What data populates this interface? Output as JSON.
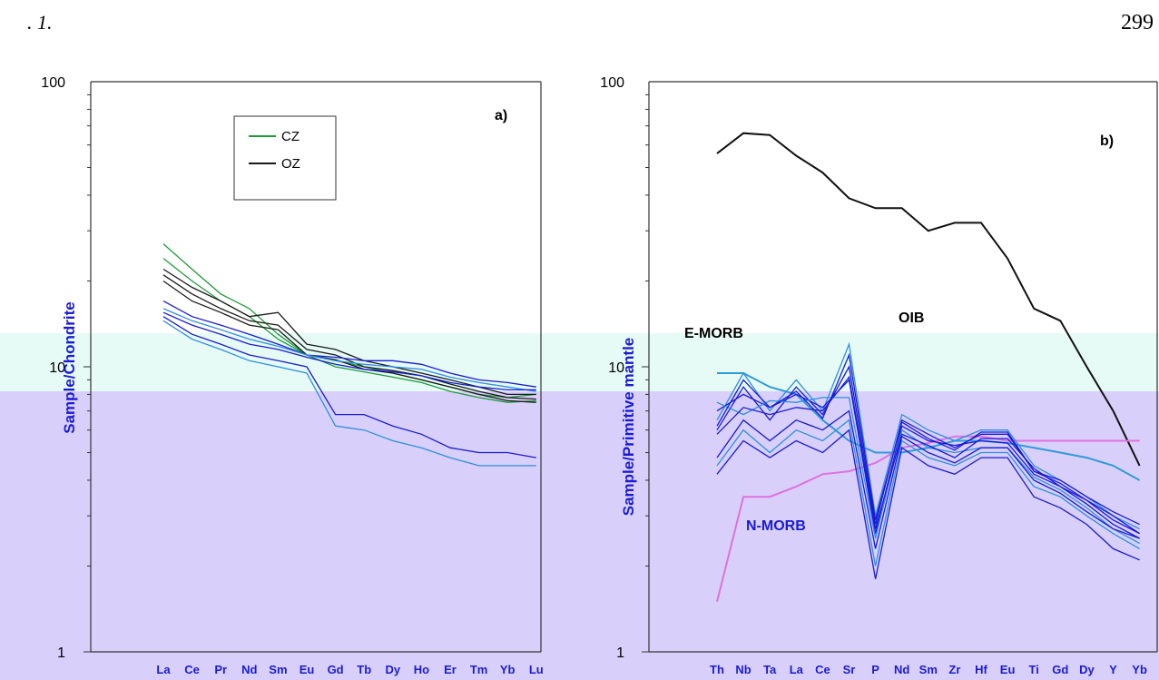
{
  "page": {
    "number": "299",
    "header_fragment": ". 1."
  },
  "colors": {
    "band_top": "#e6fbf5",
    "band_bottom": "#d8d0fa",
    "cz": "#1f9a3a",
    "oz": "#1a1a1a",
    "sample_blue": "#1a1ad8",
    "sample_light": "#2f8ee0",
    "nmorb": "#e070e0",
    "emorb": "#2f9ad8",
    "oib": "#111111"
  },
  "chart_data": [
    {
      "type": "line",
      "panel_label": "a)",
      "ylabel": "Sample/Chondrite",
      "yscale": "log",
      "ylim": [
        1,
        100
      ],
      "ytick_labels": [
        "1",
        "10",
        "100"
      ],
      "categories": [
        "La",
        "Ce",
        "Pr",
        "Nd",
        "Sm",
        "Eu",
        "Gd",
        "Tb",
        "Dy",
        "Ho",
        "Er",
        "Tm",
        "Yb",
        "Lu"
      ],
      "legend": [
        "CZ",
        "OZ"
      ],
      "legend_position": "top",
      "series": [
        {
          "name": "CZ",
          "values": [
            27,
            22,
            18,
            16,
            13,
            11,
            10.5,
            10,
            9.5,
            9,
            8.5,
            8,
            7.8,
            8
          ]
        },
        {
          "name": "CZ",
          "values": [
            24,
            20,
            17,
            15,
            12.5,
            11,
            10,
            9.6,
            9.2,
            8.8,
            8.2,
            7.8,
            7.5,
            7.6
          ]
        },
        {
          "name": "OZ",
          "values": [
            22,
            19,
            17,
            15,
            15.5,
            12,
            11.5,
            10.5,
            10,
            9.5,
            9,
            8.5,
            8,
            8
          ]
        },
        {
          "name": "OZ",
          "values": [
            21,
            18,
            16,
            14.5,
            14,
            11.5,
            11,
            10,
            9.7,
            9.3,
            8.7,
            8.2,
            7.8,
            7.7
          ]
        },
        {
          "name": "OZ",
          "values": [
            20,
            17,
            15.5,
            14,
            13.5,
            11,
            10.6,
            9.8,
            9.5,
            9,
            8.5,
            8,
            7.6,
            7.5
          ]
        },
        {
          "values": [
            17,
            15,
            14,
            13,
            12,
            11,
            10.8,
            10.5,
            10.5,
            10.2,
            9.5,
            9,
            8.8,
            8.5
          ]
        },
        {
          "values": [
            16,
            14.5,
            13.5,
            12.5,
            11.8,
            11,
            10.5,
            10.2,
            10,
            9.8,
            9.2,
            8.8,
            8.5,
            8.2
          ]
        },
        {
          "values": [
            15.5,
            14,
            13,
            12,
            11.5,
            10.8,
            10.2,
            9.8,
            9.6,
            9.3,
            8.8,
            8.5,
            8.3,
            8.3
          ]
        },
        {
          "values": [
            15,
            13,
            12,
            11,
            10.5,
            10,
            6.8,
            6.8,
            6.2,
            5.8,
            5.2,
            5,
            5,
            4.8
          ]
        },
        {
          "values": [
            14.5,
            12.5,
            11.5,
            10.5,
            10,
            9.5,
            6.2,
            6,
            5.5,
            5.2,
            4.8,
            4.5,
            4.5,
            4.5
          ]
        }
      ]
    },
    {
      "type": "line",
      "panel_label": "b)",
      "ylabel": "Sample/Primitive mantle",
      "yscale": "log",
      "ylim": [
        1,
        100
      ],
      "ytick_labels": [
        "1",
        "10",
        "100"
      ],
      "categories": [
        "Th",
        "Nb",
        "Ta",
        "La",
        "Ce",
        "Sr",
        "P",
        "Nd",
        "Sm",
        "Zr",
        "Hf",
        "Eu",
        "Ti",
        "Gd",
        "Dy",
        "Y",
        "Yb"
      ],
      "annotations": [
        "OIB",
        "N-MORB",
        "E-MORB"
      ],
      "series": [
        {
          "name": "OIB",
          "values": [
            56,
            66,
            65,
            55,
            48,
            39,
            36,
            36,
            30,
            32,
            32,
            24,
            16,
            14.5,
            10,
            7,
            4.5
          ]
        },
        {
          "name": "E-MORB",
          "values": [
            9.5,
            9.5,
            8.5,
            8,
            6.5,
            5.5,
            5,
            5,
            5.2,
            5.5,
            5.5,
            5.4,
            5.2,
            5,
            4.8,
            4.5,
            4
          ]
        },
        {
          "name": "N-MORB",
          "values": [
            1.5,
            3.5,
            3.5,
            3.8,
            4.2,
            4.3,
            4.6,
            5.2,
            5.4,
            5.7,
            5.7,
            5.5,
            5.5,
            5.5,
            5.5,
            5.5,
            5.5
          ]
        },
        {
          "values": [
            6.5,
            9.5,
            7,
            9,
            7,
            12,
            3,
            6.8,
            6,
            5.5,
            6,
            6,
            4.5,
            4,
            3.5,
            3,
            2.7
          ]
        },
        {
          "values": [
            6,
            8.5,
            6.5,
            8.5,
            6.8,
            10,
            2.8,
            6.5,
            5.8,
            5.2,
            5.8,
            5.8,
            4.3,
            3.9,
            3.4,
            2.9,
            2.6
          ]
        },
        {
          "values": [
            7,
            8,
            7.2,
            8,
            7.2,
            9,
            2.6,
            6.2,
            5.5,
            5.3,
            5.5,
            5.4,
            4.2,
            3.8,
            3.3,
            2.8,
            2.5
          ]
        },
        {
          "values": [
            7.5,
            6.8,
            7.6,
            7.5,
            7.8,
            7.8,
            2.5,
            6,
            5.2,
            5,
            5.2,
            5.2,
            4.1,
            3.7,
            3.2,
            2.7,
            2.4
          ]
        },
        {
          "values": [
            5.8,
            7.2,
            6.8,
            7.2,
            7,
            9.2,
            2.7,
            5.8,
            5.3,
            4.8,
            5.6,
            5.6,
            4.4,
            3.8,
            3.4,
            3,
            2.6
          ]
        },
        {
          "values": [
            6.2,
            9,
            7.2,
            8.2,
            6.6,
            11,
            2.9,
            6.4,
            5.6,
            5.1,
            5.9,
            5.9,
            4.3,
            4,
            3.5,
            3.1,
            2.8
          ]
        },
        {
          "values": [
            4.5,
            6,
            5,
            6,
            5.5,
            6.5,
            2,
            5.5,
            4.8,
            4.5,
            5,
            5,
            3.8,
            3.5,
            3,
            2.6,
            2.3
          ]
        },
        {
          "values": [
            4.2,
            5.5,
            4.8,
            5.5,
            5,
            6,
            1.8,
            5.2,
            4.5,
            4.2,
            4.8,
            4.8,
            3.5,
            3.2,
            2.8,
            2.3,
            2.1
          ]
        },
        {
          "values": [
            4.8,
            6.5,
            5.5,
            6.5,
            6,
            7,
            2.3,
            5.7,
            5,
            4.6,
            5.2,
            5.2,
            4,
            3.6,
            3.1,
            2.7,
            2.5
          ]
        }
      ]
    }
  ]
}
